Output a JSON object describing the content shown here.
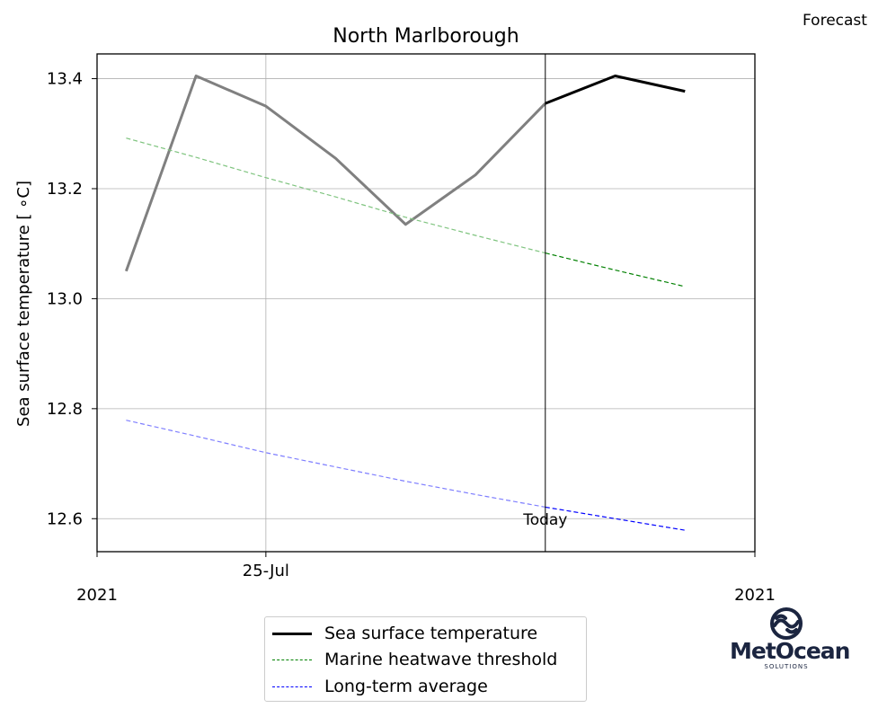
{
  "header": {
    "forecast_label": "Forecast"
  },
  "chart_data": {
    "type": "line",
    "title": "North Marlborough",
    "ylabel": "Sea surface temperature [$^\\circ$C]",
    "ylabel_display": "Sea surface temperature [ ∘C]",
    "xlabel": "",
    "ylim": [
      12.54,
      13.445
    ],
    "yticks": [
      12.6,
      12.8,
      13.0,
      13.2,
      13.4
    ],
    "ytick_labels": [
      "12.6",
      "12.8",
      "13.0",
      "13.2",
      "13.4"
    ],
    "xlim": [
      "2021-07-22T14:00",
      "2021-08-01T00:00"
    ],
    "x": [
      "2021-07-23",
      "2021-07-24",
      "2021-07-25",
      "2021-07-26",
      "2021-07-27",
      "2021-07-28",
      "2021-07-29",
      "2021-07-30",
      "2021-07-31"
    ],
    "xtick_labels": [
      {
        "x": "2021-07-22T14:00",
        "label": "2021"
      },
      {
        "x": "2021-07-25",
        "label": "25-Jul"
      },
      {
        "x": "2021-08-01T00:00",
        "label": "2021"
      }
    ],
    "today": "2021-07-29",
    "today_label": "Today",
    "grid": true,
    "legend_position": "below",
    "series": [
      {
        "name": "Sea surface temperature",
        "color": "#000000",
        "style": "solid",
        "values": [
          13.05,
          13.405,
          13.35,
          13.255,
          13.135,
          13.225,
          13.355,
          13.405,
          13.377
        ],
        "past_color": "#808080"
      },
      {
        "name": "Marine heatwave threshold",
        "color": "#008000",
        "style": "dashed",
        "values": [
          13.292,
          13.257,
          13.22,
          13.185,
          13.148,
          13.115,
          13.083,
          13.052,
          13.022
        ],
        "past_color": "#7fc47f"
      },
      {
        "name": "Long-term average",
        "color": "#0000ff",
        "style": "dashed",
        "values": [
          12.779,
          12.75,
          12.72,
          12.694,
          12.668,
          12.644,
          12.621,
          12.6,
          12.579
        ],
        "past_color": "#7f7fff"
      }
    ]
  },
  "logo": {
    "name": "MetOcean",
    "subtitle": "SOLUTIONS"
  }
}
